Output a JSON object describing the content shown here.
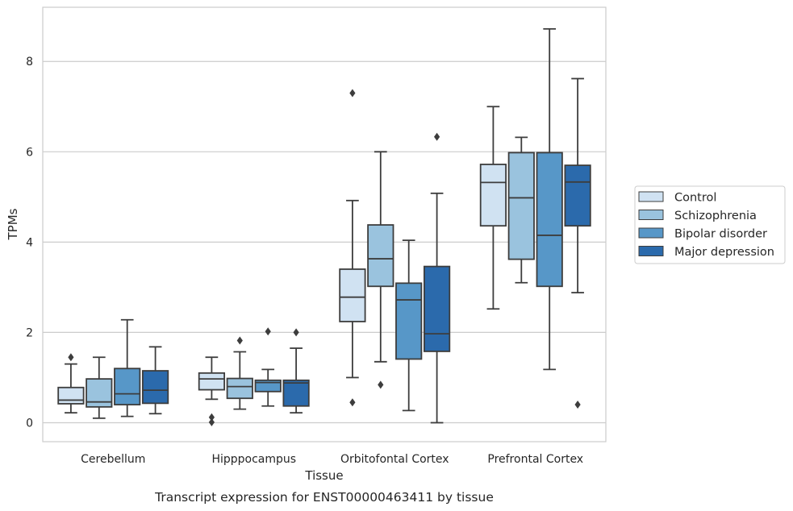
{
  "caption": "Transcript expression for ENST00000463411 by tissue",
  "chart_data": {
    "type": "boxplot",
    "xlabel": "Tissue",
    "ylabel": "TPMs",
    "ylim": [
      -0.42,
      9.2
    ],
    "yticks": [
      0,
      2,
      4,
      6,
      8
    ],
    "grid": "horizontal",
    "legend_position": "right",
    "categories": [
      "Cerebellum",
      "Hipppocampus",
      "Orbitofontal Cortex",
      "Prefrontal Cortex"
    ],
    "series": [
      {
        "name": "Control",
        "color": "#d0e2f2",
        "boxes": [
          {
            "whislo": 0.22,
            "q1": 0.42,
            "med": 0.5,
            "q3": 0.78,
            "whishi": 1.3,
            "fliers": [
              1.45
            ]
          },
          {
            "whislo": 0.52,
            "q1": 0.73,
            "med": 0.97,
            "q3": 1.1,
            "whishi": 1.45,
            "fliers": [
              0.12,
              0.01
            ]
          },
          {
            "whislo": 1.0,
            "q1": 2.24,
            "med": 2.78,
            "q3": 3.4,
            "whishi": 4.92,
            "fliers": [
              7.3,
              0.45
            ]
          },
          {
            "whislo": 2.52,
            "q1": 4.36,
            "med": 5.32,
            "q3": 5.72,
            "whishi": 7.0,
            "fliers": []
          }
        ]
      },
      {
        "name": "Schizophrenia",
        "color": "#9ac3de",
        "boxes": [
          {
            "whislo": 0.1,
            "q1": 0.35,
            "med": 0.46,
            "q3": 0.97,
            "whishi": 1.45,
            "fliers": []
          },
          {
            "whislo": 0.3,
            "q1": 0.54,
            "med": 0.8,
            "q3": 0.98,
            "whishi": 1.57,
            "fliers": [
              1.82
            ]
          },
          {
            "whislo": 1.35,
            "q1": 3.02,
            "med": 3.63,
            "q3": 4.38,
            "whishi": 6.0,
            "fliers": [
              0.84
            ]
          },
          {
            "whislo": 3.1,
            "q1": 3.62,
            "med": 4.98,
            "q3": 5.98,
            "whishi": 6.32,
            "fliers": []
          }
        ]
      },
      {
        "name": "Bipolar disorder",
        "color": "#5797c8",
        "boxes": [
          {
            "whislo": 0.14,
            "q1": 0.4,
            "med": 0.64,
            "q3": 1.2,
            "whishi": 2.28,
            "fliers": []
          },
          {
            "whislo": 0.37,
            "q1": 0.69,
            "med": 0.89,
            "q3": 0.94,
            "whishi": 1.18,
            "fliers": [
              2.02
            ]
          },
          {
            "whislo": 0.27,
            "q1": 1.41,
            "med": 2.72,
            "q3": 3.09,
            "whishi": 4.04,
            "fliers": []
          },
          {
            "whislo": 1.18,
            "q1": 3.02,
            "med": 4.15,
            "q3": 5.98,
            "whishi": 8.72,
            "fliers": []
          }
        ]
      },
      {
        "name": "Major depression",
        "color": "#2b6aac",
        "boxes": [
          {
            "whislo": 0.2,
            "q1": 0.43,
            "med": 0.72,
            "q3": 1.15,
            "whishi": 1.68,
            "fliers": []
          },
          {
            "whislo": 0.22,
            "q1": 0.37,
            "med": 0.88,
            "q3": 0.94,
            "whishi": 1.65,
            "fliers": [
              2.0
            ]
          },
          {
            "whislo": 0.0,
            "q1": 1.58,
            "med": 1.97,
            "q3": 3.46,
            "whishi": 5.08,
            "fliers": [
              6.33
            ]
          },
          {
            "whislo": 2.88,
            "q1": 4.36,
            "med": 5.33,
            "q3": 5.7,
            "whishi": 7.62,
            "fliers": [
              0.4
            ]
          }
        ]
      }
    ]
  }
}
